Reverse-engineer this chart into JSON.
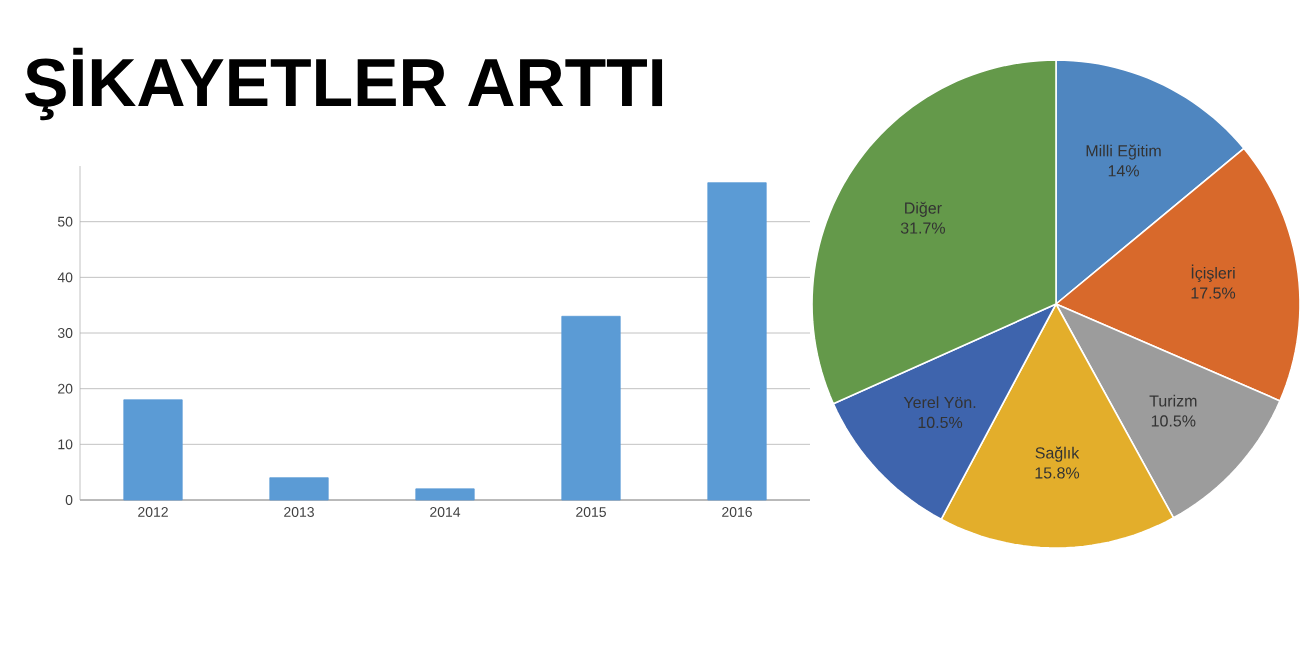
{
  "chart_data": [
    {
      "type": "bar",
      "title": "ŞİKAYETLER ARTTI",
      "categories": [
        "2012",
        "2013",
        "2014",
        "2015",
        "2016"
      ],
      "values": [
        18,
        4,
        2,
        33,
        57
      ],
      "color": "#5b9bd5",
      "ylim": [
        0,
        60
      ],
      "yticks": [
        0,
        10,
        20,
        30,
        40,
        50
      ],
      "grid": "y"
    },
    {
      "type": "pie",
      "categories": [
        "Milli Eğitim",
        "İçişleri",
        "Turizm",
        "Sağlık",
        "Yerel Yön.",
        "Diğer"
      ],
      "values": [
        14,
        17.5,
        10.5,
        15.8,
        10.5,
        31.7
      ],
      "colors": [
        "#4f86c0",
        "#d8692b",
        "#9c9c9c",
        "#e3ae2b",
        "#3e64ad",
        "#64994a"
      ],
      "value_labels": [
        "14%",
        "17.5%",
        "10.5%",
        "15.8%",
        "10.5%",
        "31.7%"
      ]
    }
  ]
}
